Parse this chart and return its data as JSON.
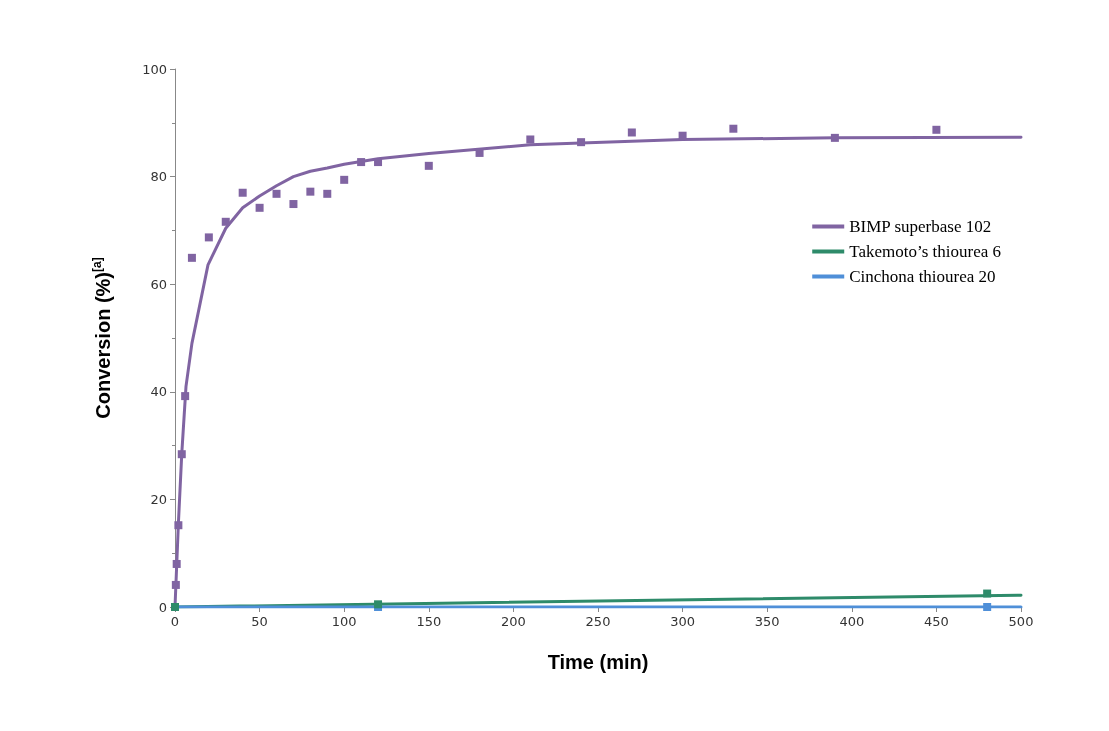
{
  "chart_data": {
    "type": "line",
    "xlabel": "Time (min)",
    "ylabel": "Conversion (%)$^{[a]}$",
    "xlim": [
      0,
      500
    ],
    "xticks": [
      0,
      50,
      100,
      150,
      200,
      250,
      300,
      350,
      400,
      450,
      500
    ],
    "ylim": [
      0,
      100
    ],
    "yticks": [
      0,
      20,
      40,
      60,
      80,
      100
    ],
    "grid": false,
    "legend": "right",
    "series": [
      {
        "name": "BIMP superbase 102",
        "marker": "none",
        "color": "#8064a2",
        "x": [
          0,
          2,
          4,
          6.5,
          10,
          19.5,
          30,
          40,
          50,
          60,
          70,
          80,
          90,
          100,
          120,
          150,
          210,
          300,
          390,
          500
        ],
        "values": [
          0,
          15.5,
          28.5,
          41,
          49,
          63.6,
          70.4,
          74.2,
          76.4,
          78.3,
          80,
          81,
          81.6,
          82.3,
          83.3,
          84.3,
          85.9,
          86.9,
          87.2,
          87.3
        ]
      },
      {
        "name": "Takemoto’s thiourea 6",
        "marker": "none",
        "color": "#2e8b6a",
        "x": [
          0,
          500
        ],
        "values": [
          0,
          2.2
        ]
      },
      {
        "name": "Cinchona thiourea 20",
        "marker": "none",
        "color": "#4f8fd8",
        "x": [
          0,
          500
        ],
        "values": [
          0,
          0
        ]
      },
      {
        "type": "scatter",
        "marker": "square",
        "color": "#8064a2",
        "x": [
          0.5,
          1,
          2,
          4,
          6,
          10,
          20,
          30,
          40,
          50,
          60,
          70,
          80,
          90,
          100,
          110,
          120,
          150,
          180,
          210,
          240,
          270,
          300,
          330,
          390,
          450
        ],
        "values": [
          4.1,
          8,
          15.2,
          28.4,
          39.2,
          64.9,
          68.7,
          71.6,
          77,
          74.2,
          76.8,
          74.9,
          77.2,
          76.8,
          79.4,
          82.7,
          82.7,
          82,
          84.4,
          86.9,
          86.4,
          88.2,
          87.6,
          88.9,
          87.2,
          88.7
        ]
      },
      {
        "type": "scatter",
        "marker": "square",
        "color": "#2e8b6a",
        "x": [
          0,
          120,
          480
        ],
        "values": [
          0,
          0.5,
          2.5
        ]
      },
      {
        "type": "scatter",
        "marker": "square",
        "color": "#4f8fd8",
        "x": [
          120,
          480
        ],
        "values": [
          0,
          0
        ]
      }
    ]
  }
}
